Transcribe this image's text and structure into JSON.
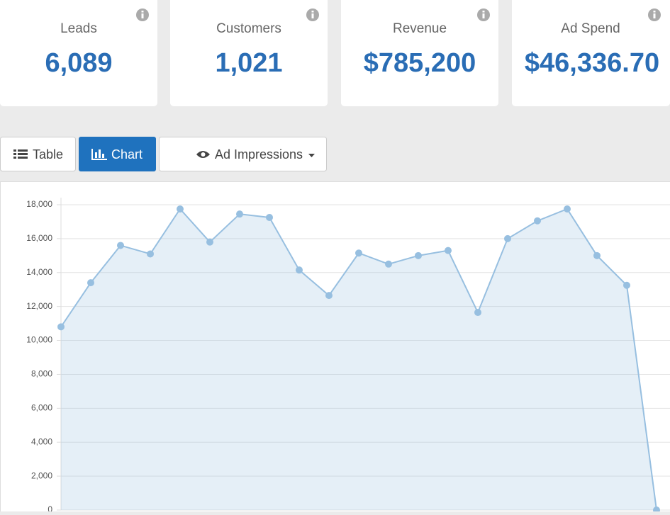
{
  "cards": [
    {
      "label": "Leads",
      "value": "6,089"
    },
    {
      "label": "Customers",
      "value": "1,021"
    },
    {
      "label": "Revenue",
      "value": "$785,200"
    },
    {
      "label": "Ad Spend",
      "value": "$46,336.70"
    }
  ],
  "tabs": {
    "table": "Table",
    "chart": "Chart",
    "metric": "Ad Impressions"
  },
  "chart_data": {
    "type": "area",
    "color": "#97bfe0",
    "categories": [
      null,
      null,
      null,
      null,
      null,
      null,
      null,
      null,
      null,
      null,
      null,
      null,
      null,
      null,
      null,
      null,
      null,
      null,
      null,
      null,
      null
    ],
    "values": [
      10800,
      13400,
      15600,
      15100,
      17750,
      15800,
      17450,
      17250,
      14150,
      12650,
      15150,
      14500,
      15000,
      15300,
      11650,
      16000,
      17050,
      17750,
      15000,
      13250,
      0
    ],
    "ylim": [
      0,
      18000
    ],
    "yticks": [
      0,
      {
        "value": 2000,
        "label": "2,000"
      },
      {
        "value": 4000,
        "label": "4,000"
      },
      {
        "value": 6000,
        "label": "6,000"
      },
      {
        "value": 8000,
        "label": "8,000"
      },
      {
        "value": 10000,
        "label": "10,000"
      },
      {
        "value": 12000,
        "label": "12,000"
      },
      {
        "value": 14000,
        "label": "14,000"
      },
      {
        "value": 16000,
        "label": "16,000"
      },
      {
        "value": 18000,
        "label": "18,000"
      }
    ],
    "grid": true
  }
}
